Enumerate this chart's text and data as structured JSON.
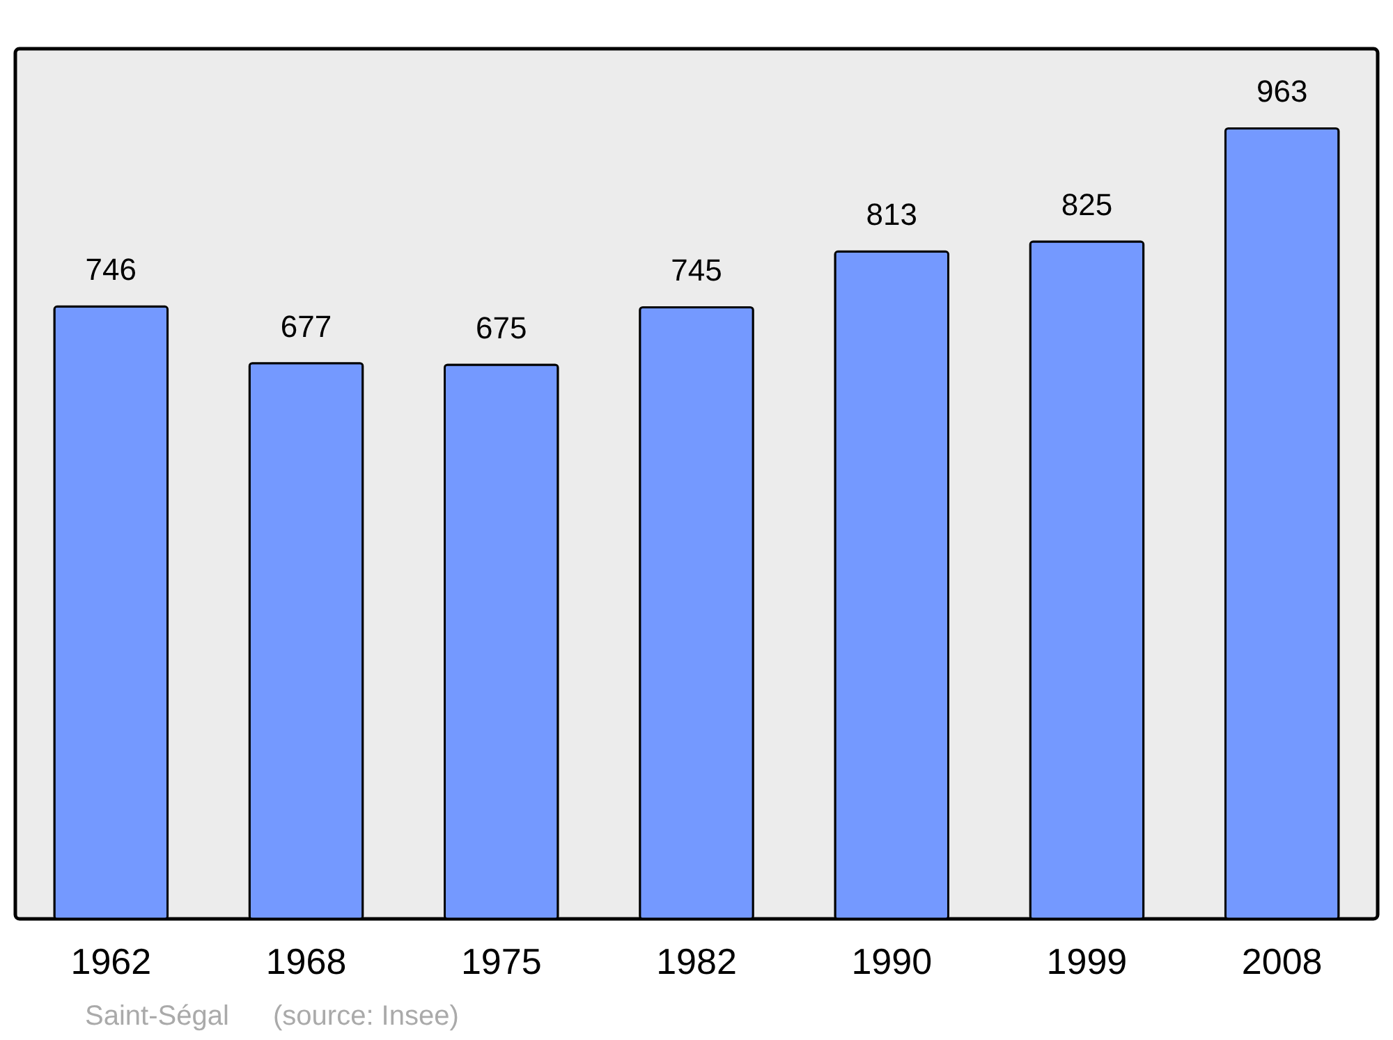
{
  "chart_data": {
    "type": "bar",
    "categories": [
      "1962",
      "1968",
      "1975",
      "1982",
      "1990",
      "1999",
      "2008"
    ],
    "values": [
      746,
      677,
      675,
      745,
      813,
      825,
      963
    ],
    "color": "#7499ff",
    "ylim": [
      0,
      1060
    ],
    "data_labels": true,
    "tick_labels": "x",
    "annotations": [
      "Saint-Ségal",
      "(source: Insee)"
    ]
  }
}
